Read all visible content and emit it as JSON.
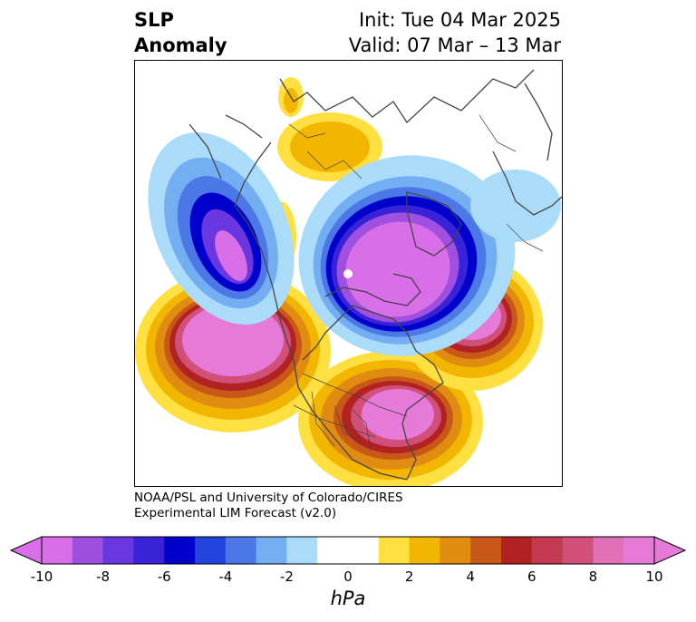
{
  "title": {
    "left_line1": "SLP",
    "left_line2": "Anomaly",
    "right_line1": "Init: Tue 04 Mar 2025",
    "right_line2": "Valid: 07 Mar – 13 Mar"
  },
  "credit": {
    "line1": "NOAA/PSL and University of Colorado/CIRES",
    "line2": "Experimental LIM Forecast (v2.0)"
  },
  "colorbar": {
    "unit": "hPa",
    "tick_labels": [
      "-10",
      "-8",
      "-6",
      "-4",
      "-2",
      "0",
      "2",
      "4",
      "6",
      "8",
      "10"
    ],
    "colors": [
      "#d86ee8",
      "#a050e0",
      "#6a36e0",
      "#3a22d8",
      "#0000cc",
      "#2244dd",
      "#4b78e6",
      "#74aef2",
      "#aadcfa",
      "#ffffff",
      "#ffe040",
      "#f2b600",
      "#e08c10",
      "#c85818",
      "#b22222",
      "#c43a50",
      "#d0507a",
      "#e070b8",
      "#e67ad8",
      "#e67ad8"
    ]
  },
  "map": {
    "projection": "North Polar Stereographic",
    "positive_centers": [
      "Northeast Pacific",
      "Eastern United States",
      "Northeast Atlantic"
    ],
    "negative_centers": [
      "Arctic / Northern Canada",
      "Western Bering Sea / Kamchatka"
    ],
    "colors": {
      "strong_pos": "#e67ad8",
      "pos5": "#d0507a",
      "pos4": "#b22222",
      "pos3": "#e08c10",
      "pos2": "#f2b600",
      "pos1": "#ffe040",
      "neg1": "#aadcfa",
      "neg2": "#74aef2",
      "neg3": "#4b78e6",
      "neg4": "#0000cc",
      "neg5": "#a050e0",
      "strong_neg": "#d86ee8"
    }
  }
}
